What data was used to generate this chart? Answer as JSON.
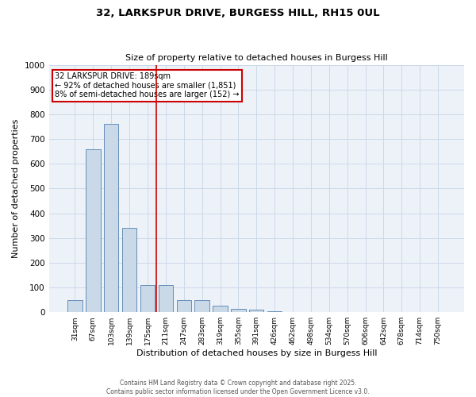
{
  "title_line1": "32, LARKSPUR DRIVE, BURGESS HILL, RH15 0UL",
  "title_line2": "Size of property relative to detached houses in Burgess Hill",
  "xlabel": "Distribution of detached houses by size in Burgess Hill",
  "ylabel": "Number of detached properties",
  "categories": [
    "31sqm",
    "67sqm",
    "103sqm",
    "139sqm",
    "175sqm",
    "211sqm",
    "247sqm",
    "283sqm",
    "319sqm",
    "355sqm",
    "391sqm",
    "426sqm",
    "462sqm",
    "498sqm",
    "534sqm",
    "570sqm",
    "606sqm",
    "642sqm",
    "678sqm",
    "714sqm",
    "750sqm"
  ],
  "values": [
    50,
    660,
    760,
    340,
    110,
    110,
    50,
    50,
    25,
    15,
    10,
    5,
    0,
    0,
    0,
    0,
    0,
    0,
    0,
    0,
    0
  ],
  "bar_color": "#c9d9e8",
  "bar_edge_color": "#5580b0",
  "vline_x": 4.5,
  "vline_color": "#cc0000",
  "annotation_text": "32 LARKSPUR DRIVE: 189sqm\n← 92% of detached houses are smaller (1,851)\n8% of semi-detached houses are larger (152) →",
  "annotation_box_color": "#cc0000",
  "ylim": [
    0,
    1000
  ],
  "yticks": [
    0,
    100,
    200,
    300,
    400,
    500,
    600,
    700,
    800,
    900,
    1000
  ],
  "footer_line1": "Contains HM Land Registry data © Crown copyright and database right 2025.",
  "footer_line2": "Contains public sector information licensed under the Open Government Licence v3.0.",
  "grid_color": "#ccd9e8",
  "background_color": "#edf2f8",
  "fig_width": 6.0,
  "fig_height": 5.0,
  "dpi": 100
}
